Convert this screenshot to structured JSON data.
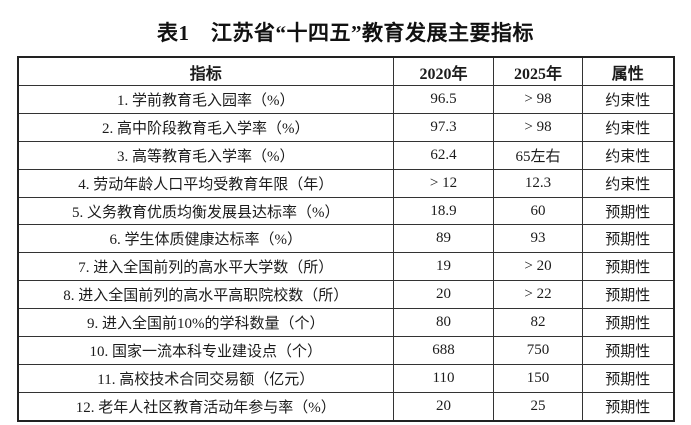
{
  "title": "表1　江苏省“十四五”教育发展主要指标",
  "table": {
    "headers": {
      "indicator": "指标",
      "y2020": "2020年",
      "y2025": "2025年",
      "attribute": "属性"
    },
    "rows": [
      {
        "indicator": "1.  学前教育毛入园率（%）",
        "v2020": "96.5",
        "v2025": "> 98",
        "attr": "约束性"
      },
      {
        "indicator": "2.  高中阶段教育毛入学率（%）",
        "v2020": "97.3",
        "v2025": "> 98",
        "attr": "约束性"
      },
      {
        "indicator": "3.  高等教育毛入学率（%）",
        "v2020": "62.4",
        "v2025": "65左右",
        "attr": "约束性"
      },
      {
        "indicator": "4.  劳动年龄人口平均受教育年限（年）",
        "v2020": "> 12",
        "v2025": "12.3",
        "attr": "约束性"
      },
      {
        "indicator": "5.  义务教育优质均衡发展县达标率（%）",
        "v2020": "18.9",
        "v2025": "60",
        "attr": "预期性"
      },
      {
        "indicator": "6.  学生体质健康达标率（%）",
        "v2020": "89",
        "v2025": "93",
        "attr": "预期性"
      },
      {
        "indicator": "7.  进入全国前列的高水平大学数（所）",
        "v2020": "19",
        "v2025": "> 20",
        "attr": "预期性"
      },
      {
        "indicator": "8.  进入全国前列的高水平高职院校数（所）",
        "v2020": "20",
        "v2025": "> 22",
        "attr": "预期性"
      },
      {
        "indicator": "9.  进入全国前10%的学科数量（个）",
        "v2020": "80",
        "v2025": "82",
        "attr": "预期性"
      },
      {
        "indicator": "10.  国家一流本科专业建设点（个）",
        "v2020": "688",
        "v2025": "750",
        "attr": "预期性"
      },
      {
        "indicator": "11.  高校技术合同交易额（亿元）",
        "v2020": "110",
        "v2025": "150",
        "attr": "预期性"
      },
      {
        "indicator": "12.  老年人社区教育活动年参与率（%）",
        "v2020": "20",
        "v2025": "25",
        "attr": "预期性"
      }
    ]
  }
}
